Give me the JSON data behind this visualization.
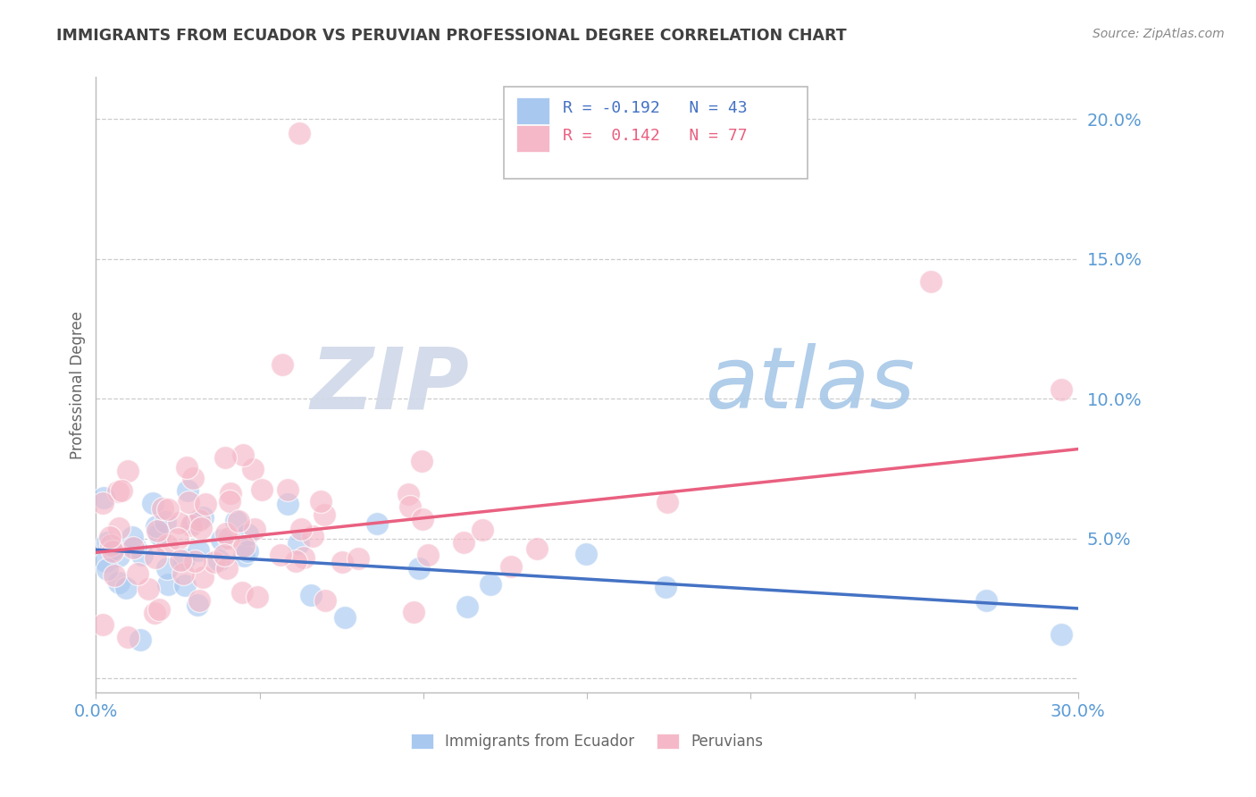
{
  "title": "IMMIGRANTS FROM ECUADOR VS PERUVIAN PROFESSIONAL DEGREE CORRELATION CHART",
  "source": "Source: ZipAtlas.com",
  "ylabel": "Professional Degree",
  "xmin": 0.0,
  "xmax": 0.3,
  "ymin": -0.005,
  "ymax": 0.215,
  "yticks": [
    0.0,
    0.05,
    0.1,
    0.15,
    0.2
  ],
  "ytick_labels": [
    "",
    "5.0%",
    "10.0%",
    "15.0%",
    "20.0%"
  ],
  "watermark_zip": "ZIP",
  "watermark_atlas": "atlas",
  "legend_blue_r": "R = -0.192",
  "legend_blue_n": "N = 43",
  "legend_pink_r": "R =  0.142",
  "legend_pink_n": "N = 77",
  "blue_scatter_color": "#A8C8F0",
  "pink_scatter_color": "#F5B8C8",
  "blue_line_color": "#4472C4",
  "pink_line_color": "#E96080",
  "axis_label_color": "#5B9BD5",
  "grid_color": "#CCCCCC",
  "title_color": "#404040",
  "source_color": "#888888",
  "legend_blue_text_color": "#4472C4",
  "legend_pink_text_color": "#E96080",
  "watermark_zip_color": "#D0D8E8",
  "watermark_atlas_color": "#A8C8E8",
  "bottom_legend_text_color": "#666666"
}
